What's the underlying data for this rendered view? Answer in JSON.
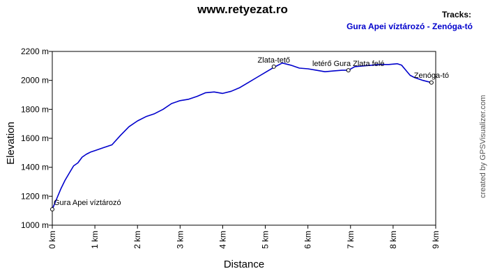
{
  "header": {
    "title": "www.retyezat.ro",
    "tracks_heading": "Tracks:",
    "track_name": "Gura Apei víztározó - Zenóga-tó",
    "credit": "created by GPSVisualizer.com"
  },
  "chart_data": {
    "type": "line",
    "title": "www.retyezat.ro",
    "xlabel": "Distance",
    "ylabel": "Elevation",
    "xlim": [
      0,
      9
    ],
    "ylim": [
      1000,
      2200
    ],
    "x_ticks": [
      0,
      1,
      2,
      3,
      4,
      5,
      6,
      7,
      8,
      9
    ],
    "x_tick_labels": [
      "0 km",
      "1 km",
      "2 km",
      "3 km",
      "4 km",
      "5 km",
      "6 km",
      "7 km",
      "8 km",
      "9 km"
    ],
    "y_ticks": [
      1000,
      1200,
      1400,
      1600,
      1800,
      2000,
      2200
    ],
    "y_tick_labels": [
      "1000 m",
      "1200 m",
      "1400 m",
      "1600 m",
      "1800 m",
      "2000 m",
      "2200 m"
    ],
    "grid": false,
    "line_color": "#0000cc",
    "series": [
      {
        "name": "Gura Apei víztározó - Zenóga-tó",
        "x": [
          0,
          0.1,
          0.2,
          0.3,
          0.4,
          0.5,
          0.6,
          0.7,
          0.8,
          0.9,
          1.0,
          1.2,
          1.4,
          1.6,
          1.8,
          2.0,
          2.2,
          2.4,
          2.6,
          2.8,
          3.0,
          3.2,
          3.4,
          3.6,
          3.8,
          4.0,
          4.2,
          4.4,
          4.6,
          4.8,
          5.0,
          5.2,
          5.4,
          5.6,
          5.8,
          6.0,
          6.2,
          6.4,
          6.6,
          6.8,
          6.95,
          7.1,
          7.3,
          7.5,
          7.7,
          7.9,
          8.1,
          8.2,
          8.3,
          8.4,
          8.5,
          8.7,
          8.9
        ],
        "y": [
          1110,
          1180,
          1250,
          1310,
          1360,
          1410,
          1430,
          1470,
          1490,
          1505,
          1515,
          1535,
          1555,
          1620,
          1680,
          1720,
          1750,
          1770,
          1800,
          1840,
          1860,
          1870,
          1890,
          1915,
          1920,
          1910,
          1925,
          1950,
          1985,
          2020,
          2055,
          2090,
          2120,
          2105,
          2085,
          2080,
          2070,
          2060,
          2065,
          2070,
          2070,
          2095,
          2100,
          2105,
          2110,
          2110,
          2115,
          2105,
          2070,
          2035,
          2020,
          2000,
          1985
        ]
      }
    ],
    "annotations": [
      {
        "text": "Gura Apei víztározó",
        "x": 0,
        "y": 1110
      },
      {
        "text": "Zlata-tető",
        "x": 5.2,
        "y": 2095
      },
      {
        "text": "letérő Gura Zlata felé",
        "x": 6.95,
        "y": 2070
      },
      {
        "text": "Zenóga-tó",
        "x": 8.9,
        "y": 1985
      }
    ]
  }
}
